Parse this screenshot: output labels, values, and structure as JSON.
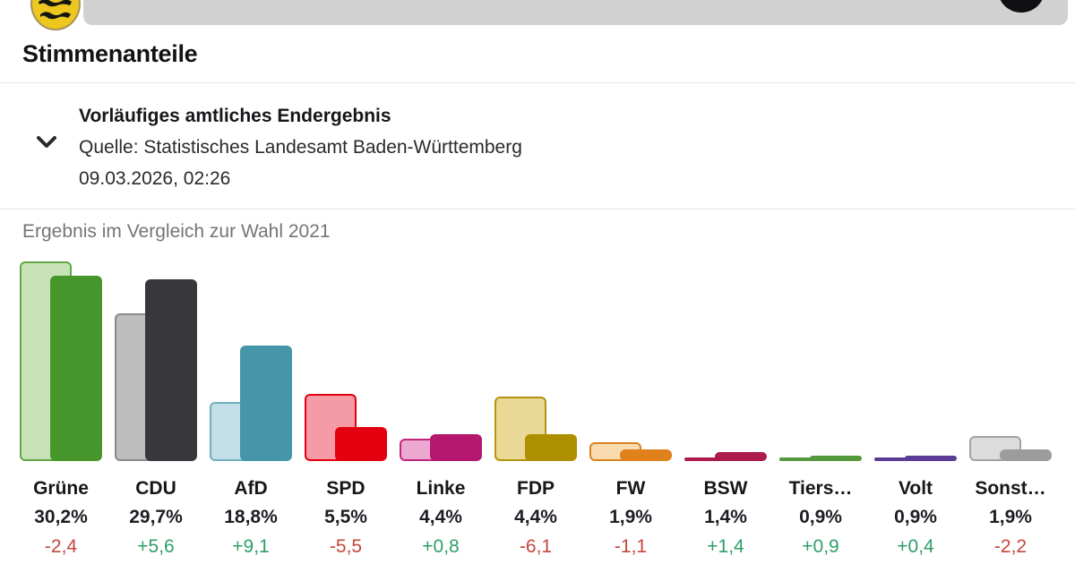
{
  "header": {
    "badge": "baden-wuerttemberg-coat-of-arms",
    "bar_color": "#d1d1d1"
  },
  "section": {
    "title": "Stimmenanteile"
  },
  "info": {
    "status": "Vorläufiges amtliches Endergebnis",
    "source": "Quelle: Statistisches Landesamt Baden-Württemberg",
    "timestamp": "09.03.2026, 02:26"
  },
  "chart_data": {
    "type": "bar",
    "title": "Ergebnis im Vergleich zur Wahl 2021",
    "comparison_year": "2021",
    "unit": "%",
    "ylim": [
      0,
      33
    ],
    "grid": false,
    "legend": "none",
    "categories": [
      "Grüne",
      "CDU",
      "AfD",
      "SPD",
      "Linke",
      "FDP",
      "FW",
      "BSW",
      "Tiers…",
      "Volt",
      "Sonst…"
    ],
    "series": [
      {
        "name": "Wahl 2021",
        "values": [
          32.6,
          24.1,
          9.7,
          11.0,
          3.6,
          10.5,
          3.0,
          0.0,
          0.0,
          0.5,
          4.1
        ]
      },
      {
        "name": "Vorläufiges amtliches Endergebnis 2026",
        "values": [
          30.2,
          29.7,
          18.8,
          5.5,
          4.4,
          4.4,
          1.9,
          1.4,
          0.9,
          0.9,
          1.9
        ]
      }
    ],
    "value_labels": [
      "30,2%",
      "29,7%",
      "18,8%",
      "5,5%",
      "4,4%",
      "4,4%",
      "1,9%",
      "1,4%",
      "0,9%",
      "0,9%",
      "1,9%"
    ],
    "diff_labels": [
      "-2,4",
      "+5,6",
      "+9,1",
      "-5,5",
      "+0,8",
      "-6,1",
      "-1,1",
      "+1,4",
      "+0,9",
      "+0,4",
      "-2,2"
    ],
    "diff_directions": [
      "down",
      "up",
      "up",
      "down",
      "up",
      "down",
      "down",
      "up",
      "up",
      "up",
      "down"
    ],
    "colors": {
      "current": [
        "#46962b",
        "#38383c",
        "#4596a9",
        "#e3000f",
        "#b5176e",
        "#ad8f00",
        "#e0811c",
        "#ad1a4d",
        "#55993d",
        "#5b3b96",
        "#9c9c9c"
      ],
      "previous_fill": [
        "#c8e2b8",
        "#bdbdbd",
        "#c3e0e8",
        "#f59ba6",
        "#eba9d2",
        "#ead896",
        "#f8dcb0",
        "#d889a0",
        "#a8cf96",
        "#b7a5d8",
        "#dcdcdc"
      ],
      "previous_border": [
        "#61a744",
        "#8a8a8a",
        "#6fb0bd",
        "#e3000f",
        "#c2257e",
        "#b3940e",
        "#d9821f",
        "#ad1a4d",
        "#55993d",
        "#5b3b96",
        "#a3a3a3"
      ],
      "diff_up": "#2f9e68",
      "diff_down": "#c4473d"
    }
  }
}
